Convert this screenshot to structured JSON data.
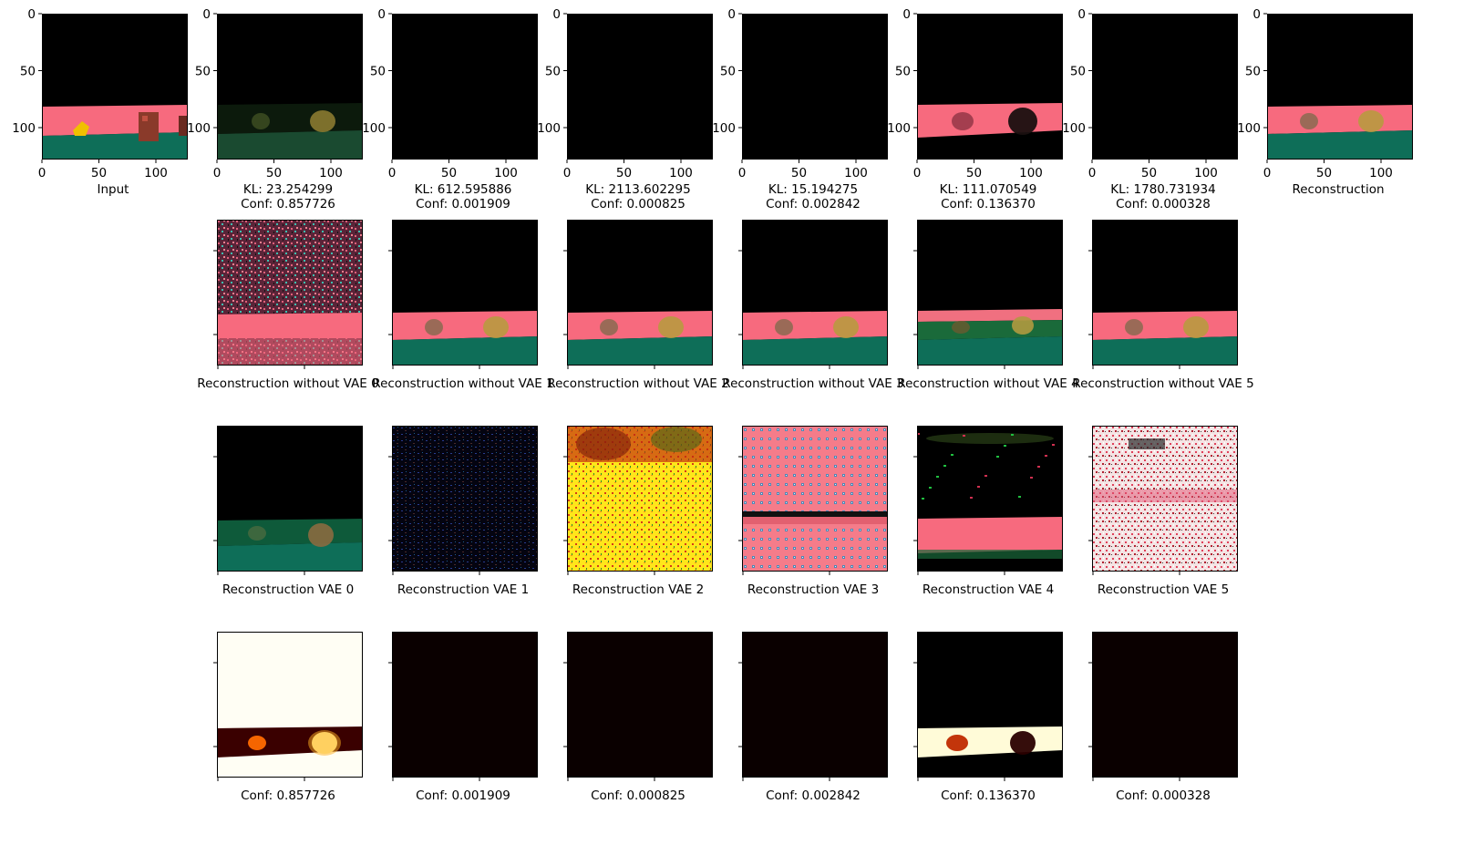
{
  "chart_data": {
    "type": "image_grid",
    "axis_ticks": {
      "x": [
        "0",
        "50",
        "100"
      ],
      "y": [
        "0",
        "50",
        "100"
      ]
    },
    "rows": [
      {
        "panels": [
          {
            "label": "Input",
            "kl": "",
            "conf": "",
            "content": "input-scene"
          },
          {
            "kl": "KL: 23.254299",
            "conf": "Conf: 0.857726",
            "content": "dark-latent-scene"
          },
          {
            "kl": "KL: 612.595886",
            "conf": "Conf: 0.001909",
            "content": "black"
          },
          {
            "kl": "KL: 2113.602295",
            "conf": "Conf: 0.000825",
            "content": "black"
          },
          {
            "kl": "KL: 15.194275",
            "conf": "Conf: 0.002842",
            "content": "black"
          },
          {
            "kl": "KL: 111.070549",
            "conf": "Conf: 0.136370",
            "content": "pink-band-scene"
          },
          {
            "kl": "KL: 1780.731934",
            "conf": "Conf: 0.000328",
            "content": "black"
          },
          {
            "label": "Reconstruction",
            "kl": "",
            "conf": "",
            "content": "recon-scene"
          }
        ]
      },
      {
        "labels": [
          "Reconstruction without VAE 0",
          "Reconstruction without VAE 1",
          "Reconstruction without VAE 2",
          "Reconstruction without VAE 3",
          "Reconstruction without VAE 4",
          "Reconstruction without VAE 5"
        ],
        "content": [
          "noisy-pink-scene",
          "recon-scene",
          "recon-scene",
          "recon-scene",
          "green-band-scene",
          "recon-scene"
        ]
      },
      {
        "labels": [
          "Reconstruction VAE 0",
          "Reconstruction VAE 1",
          "Reconstruction VAE 2",
          "Reconstruction VAE 3",
          "Reconstruction VAE 4",
          "Reconstruction VAE 5"
        ],
        "content": [
          "dark-green-scene",
          "dark-noise",
          "yellow-noise",
          "pink-grid",
          "black-pink-band",
          "white-pink-noise"
        ]
      },
      {
        "labels": [
          "Conf: 0.857726",
          "Conf: 0.001909",
          "Conf: 0.000825",
          "Conf: 0.002842",
          "Conf: 0.136370",
          "Conf: 0.000328"
        ],
        "content": [
          "conf-high",
          "conf-black",
          "conf-black",
          "conf-black",
          "conf-mid",
          "conf-black"
        ]
      }
    ],
    "colors": {
      "pink": "#f76a7e",
      "teal": "#0e6e58",
      "black": "#000000",
      "white": "#ffffff"
    }
  }
}
